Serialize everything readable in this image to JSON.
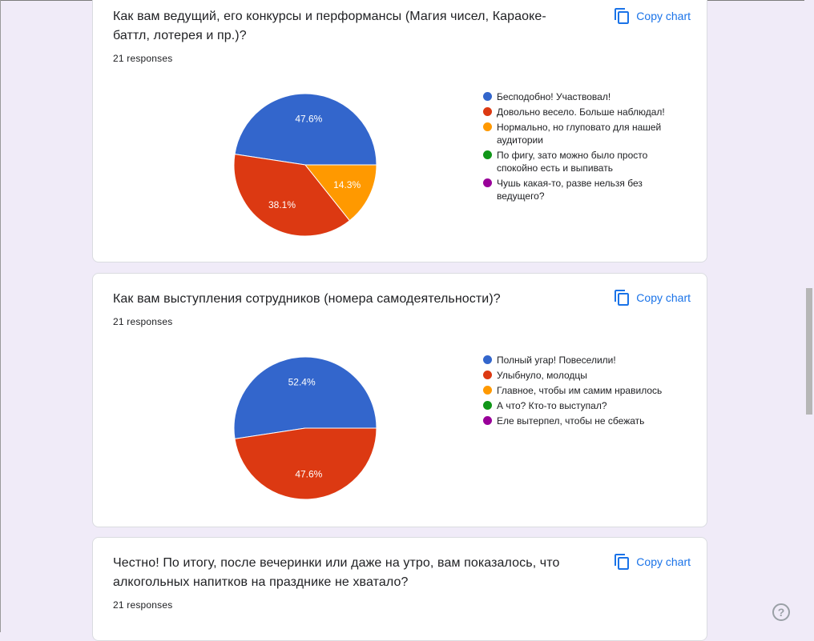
{
  "copy_chart_label": "Copy chart",
  "colors": {
    "blue": "#3366cc",
    "red": "#dc3912",
    "orange": "#ff9900",
    "green": "#109618",
    "purple": "#990099"
  },
  "cards": [
    {
      "question": "Как вам ведущий, его конкурсы и перформансы (Магия чисел, Караоке-баттл, лотерея и пр.)?",
      "responses": "21 responses",
      "legend": [
        "Бесподобно! Участвовал!",
        "Довольно весело. Больше наблюдал!",
        "Нормально, но глуповато для нашей аудитории",
        "По фигу, зато можно было просто спокойно есть и выпивать",
        "Чушь какая-то, разве нельзя без ведущего?"
      ]
    },
    {
      "question": "Как вам выступления сотрудников (номера самодеятельности)?",
      "responses": "21 responses",
      "legend": [
        "Полный угар! Повеселили!",
        "Улыбнуло, молодцы",
        "Главное, чтобы им самим нравилось",
        "А что? Кто-то выступал?",
        "Еле вытерпел, чтобы не сбежать"
      ]
    },
    {
      "question": "Честно! По итогу, после вечеринки или даже на утро, вам показалось, что алкогольных напитков на празднике не хватало?",
      "responses": "21 responses"
    }
  ],
  "chart_data": [
    {
      "type": "pie",
      "labels": [
        "Бесподобно! Участвовал!",
        "Довольно весело. Больше наблюдал!",
        "Нормально, но глуповато для нашей аудитории",
        "По фигу, зато можно было просто спокойно есть и выпивать",
        "Чушь какая-то, разве нельзя без ведущего?"
      ],
      "values": [
        47.6,
        38.1,
        14.3,
        0,
        0
      ],
      "slice_labels": [
        "47.6%",
        "38.1%",
        "14.3%",
        "",
        ""
      ],
      "colors": [
        "#3366cc",
        "#dc3912",
        "#ff9900",
        "#109618",
        "#990099"
      ],
      "legend": "right"
    },
    {
      "type": "pie",
      "labels": [
        "Полный угар! Повеселили!",
        "Улыбнуло, молодцы",
        "Главное, чтобы им самим нравилось",
        "А что? Кто-то выступал?",
        "Еле вытерпел, чтобы не сбежать"
      ],
      "values": [
        52.4,
        47.6,
        0,
        0,
        0
      ],
      "slice_labels": [
        "52.4%",
        "47.6%",
        "",
        "",
        ""
      ],
      "colors": [
        "#3366cc",
        "#dc3912",
        "#ff9900",
        "#109618",
        "#990099"
      ],
      "legend": "right"
    }
  ]
}
